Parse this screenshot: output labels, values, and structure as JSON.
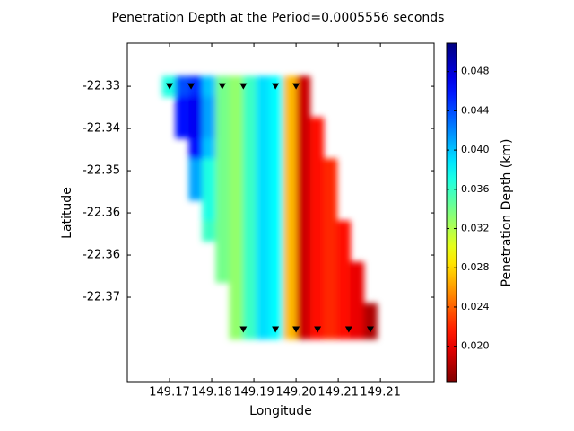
{
  "chart_data": {
    "type": "heatmap",
    "title": "Penetration Depth at the Period=0.0005556 seconds",
    "xlabel": "Longitude",
    "ylabel": "Latitude",
    "x": [
      149.1698,
      149.1726,
      149.1754,
      149.1782,
      149.181,
      149.1839,
      149.1867,
      149.1895,
      149.1923,
      149.1951,
      149.1979,
      149.2007,
      149.2035,
      149.2063,
      149.2091,
      149.2119
    ],
    "y": [
      -22.33,
      -22.3342,
      -22.3383,
      -22.3425,
      -22.3466,
      -22.3508,
      -22.355,
      -22.3591,
      -22.3633,
      -22.3674,
      -22.3716,
      -22.3758,
      -22.3792
    ],
    "z": [
      [
        0.037,
        0.044,
        0.045,
        0.04,
        0.034,
        0.033,
        0.036,
        0.039,
        0.038,
        0.027,
        0.019,
        null,
        null,
        null,
        null,
        null
      ],
      [
        null,
        0.046,
        0.047,
        0.041,
        0.034,
        0.033,
        0.036,
        0.039,
        0.038,
        0.027,
        0.019,
        null,
        null,
        null,
        null,
        null
      ],
      [
        null,
        0.046,
        0.047,
        0.041,
        0.034,
        0.033,
        0.036,
        0.039,
        0.038,
        0.027,
        0.019,
        0.021,
        null,
        null,
        null,
        null
      ],
      [
        null,
        null,
        0.046,
        0.04,
        0.034,
        0.033,
        0.036,
        0.039,
        0.038,
        0.027,
        0.019,
        0.021,
        null,
        null,
        null,
        null
      ],
      [
        null,
        null,
        0.041,
        0.037,
        0.034,
        0.033,
        0.036,
        0.039,
        0.038,
        0.027,
        0.019,
        0.021,
        0.022,
        null,
        null,
        null
      ],
      [
        null,
        null,
        0.041,
        0.037,
        0.034,
        0.033,
        0.036,
        0.039,
        0.038,
        0.027,
        0.019,
        0.021,
        0.022,
        null,
        null,
        null
      ],
      [
        null,
        null,
        null,
        0.037,
        0.034,
        0.033,
        0.036,
        0.039,
        0.038,
        0.027,
        0.019,
        0.021,
        0.022,
        null,
        null,
        null
      ],
      [
        null,
        null,
        null,
        0.036,
        0.034,
        0.033,
        0.036,
        0.039,
        0.038,
        0.027,
        0.019,
        0.021,
        0.022,
        0.021,
        null,
        null
      ],
      [
        null,
        null,
        null,
        null,
        0.034,
        0.033,
        0.036,
        0.039,
        0.038,
        0.027,
        0.019,
        0.021,
        0.022,
        0.021,
        null,
        null
      ],
      [
        null,
        null,
        null,
        null,
        0.034,
        0.033,
        0.036,
        0.039,
        0.038,
        0.027,
        0.019,
        0.021,
        0.022,
        0.021,
        0.02,
        null
      ],
      [
        null,
        null,
        null,
        null,
        null,
        0.033,
        0.036,
        0.039,
        0.038,
        0.027,
        0.019,
        0.021,
        0.022,
        0.021,
        0.02,
        null
      ],
      [
        null,
        null,
        null,
        null,
        null,
        0.033,
        0.036,
        0.039,
        0.038,
        0.027,
        0.019,
        0.021,
        0.022,
        0.021,
        0.02,
        0.018
      ],
      [
        null,
        null,
        null,
        null,
        null,
        0.033,
        0.036,
        0.039,
        0.038,
        0.027,
        0.019,
        0.021,
        0.022,
        0.021,
        0.02,
        0.018
      ]
    ],
    "xlim": [
      149.1612,
      149.2252
    ],
    "ylim": [
      -22.3895,
      -22.3213
    ],
    "xticks": [
      149.17,
      {
        "value": 149.1788,
        "label": "149.18"
      },
      {
        "value": 149.1876,
        "label": "149.19"
      },
      {
        "value": 149.1964,
        "label": "149.20"
      },
      {
        "value": 149.2052,
        "label": "149.21"
      },
      {
        "value": 149.214,
        "label": "149.21"
      }
    ],
    "yticks": [
      -22.33,
      {
        "value": -22.3385,
        "label": "-22.34"
      },
      {
        "value": -22.347,
        "label": "-22.35"
      },
      {
        "value": -22.3555,
        "label": "-22.36"
      },
      {
        "value": -22.364,
        "label": "-22.36"
      },
      {
        "value": -22.3725,
        "label": "-22.37"
      }
    ],
    "colormap": "jet_r",
    "colorbar": {
      "label": "Penetration Depth (km)",
      "clim": [
        0.0164,
        0.0509
      ],
      "ticks": [
        {
          "value": 0.02,
          "label": "0.020"
        },
        0.024,
        0.028,
        {
          "value": 0.032,
          "label": "0.032"
        },
        {
          "value": 0.036,
          "label": "0.036"
        },
        {
          "value": 0.04,
          "label": "0.040"
        },
        0.044,
        0.048
      ]
    },
    "stations": {
      "color": "#000000",
      "x": [
        149.17,
        149.1745,
        149.181,
        149.1854,
        149.1921,
        149.1964,
        149.1854,
        149.1921,
        149.1964,
        149.2009,
        149.2074,
        149.2119
      ],
      "y": [
        -22.33,
        -22.33,
        -22.33,
        -22.33,
        -22.33,
        -22.33,
        -22.379,
        -22.379,
        -22.379,
        -22.379,
        -22.379,
        -22.379
      ]
    }
  }
}
